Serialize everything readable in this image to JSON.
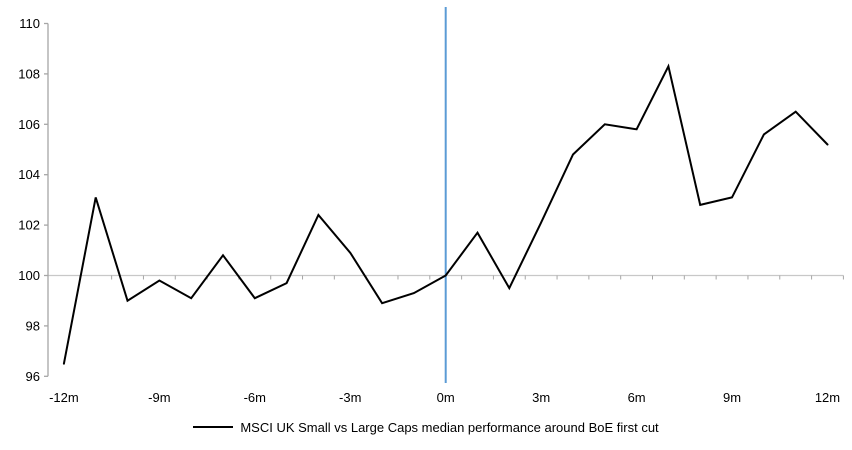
{
  "chart_data": {
    "type": "line",
    "title": "",
    "xlabel": "",
    "ylabel": "",
    "x_months": [
      -12,
      -11,
      -10,
      -9,
      -8,
      -7,
      -6,
      -5,
      -4,
      -3,
      -2,
      -1,
      0,
      1,
      2,
      3,
      4,
      5,
      6,
      7,
      8,
      9,
      10,
      11,
      12
    ],
    "series": [
      {
        "name": "MSCI UK Small vs Large Caps median performance around BoE first cut",
        "color": "#000000",
        "values": [
          96.5,
          103.1,
          99.0,
          99.8,
          99.1,
          100.8,
          99.1,
          99.7,
          102.4,
          100.9,
          98.9,
          99.3,
          100.0,
          101.7,
          99.5,
          102.1,
          104.8,
          106.0,
          105.8,
          108.3,
          102.8,
          103.1,
          105.6,
          106.5,
          105.2
        ]
      }
    ],
    "ylim": [
      96,
      110
    ],
    "y_ticks": [
      96,
      98,
      100,
      102,
      104,
      106,
      108,
      110
    ],
    "x_tick_months": [
      -12,
      -9,
      -6,
      -3,
      0,
      3,
      6,
      9,
      12
    ],
    "x_tick_labels": [
      "-12m",
      "-9m",
      "-6m",
      "-3m",
      "0m",
      "3m",
      "6m",
      "9m",
      "12m"
    ],
    "baseline_value": 100,
    "event_line_month": 0,
    "grid": "off",
    "legend_position": "bottom",
    "colors": {
      "series": "#000000",
      "event_line": "#5B9BD5",
      "baseline": "#C8C8C8",
      "axis": "#A6A6A6",
      "tick": "#A6A6A6",
      "text": "#000000"
    }
  },
  "legend": {
    "label": "MSCI UK Small vs Large Caps median performance around BoE first cut"
  }
}
